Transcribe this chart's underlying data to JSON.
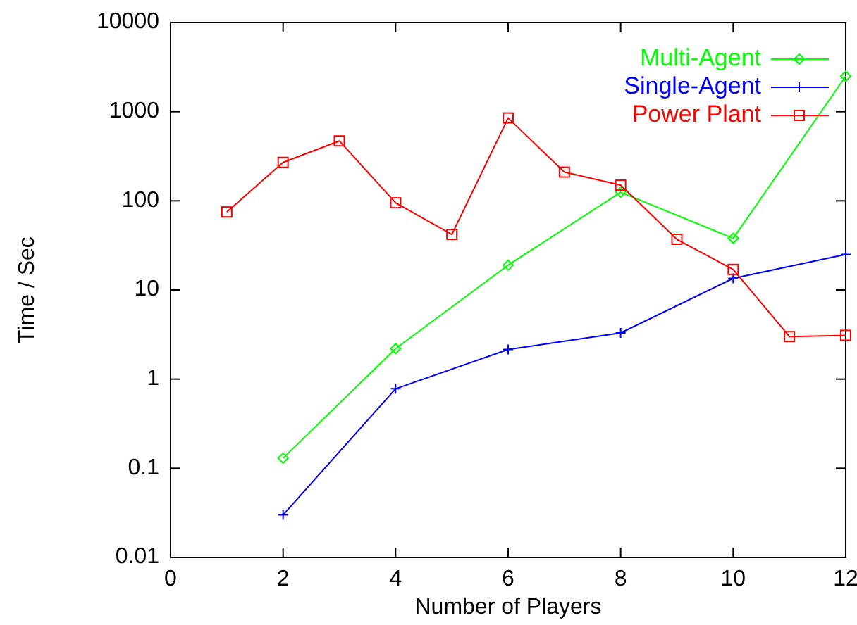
{
  "chart_data": {
    "type": "line",
    "xlabel": "Number of Players",
    "ylabel": "Time / Sec",
    "log": "y",
    "xlim": [
      0,
      12
    ],
    "xticks": [
      0,
      2,
      4,
      6,
      8,
      10,
      12
    ],
    "ylim": [
      0.01,
      10000
    ],
    "yticks": [
      0.01,
      0.1,
      1,
      10,
      100,
      1000,
      10000
    ],
    "grid": false,
    "legend": "top right",
    "series": [
      {
        "name": "Multi-Agent",
        "color": "#00ff00",
        "marker": "diamond",
        "x": [
          2,
          4,
          6,
          8,
          10,
          12
        ],
        "values": [
          0.13,
          2.2,
          19,
          125,
          38,
          2500
        ]
      },
      {
        "name": "Single-Agent",
        "color": "#0000ff",
        "marker": "cross",
        "x": [
          2,
          4,
          6,
          8,
          10,
          12
        ],
        "values": [
          0.03,
          0.78,
          2.15,
          3.3,
          13.5,
          25
        ]
      },
      {
        "name": "Power Plant",
        "color": "#ff0000",
        "marker": "square",
        "x": [
          1,
          2,
          3,
          4,
          5,
          6,
          7,
          8,
          9,
          10,
          11,
          12
        ],
        "values": [
          75,
          270,
          470,
          95,
          42,
          850,
          210,
          150,
          37,
          17,
          3,
          3.1
        ]
      }
    ]
  }
}
